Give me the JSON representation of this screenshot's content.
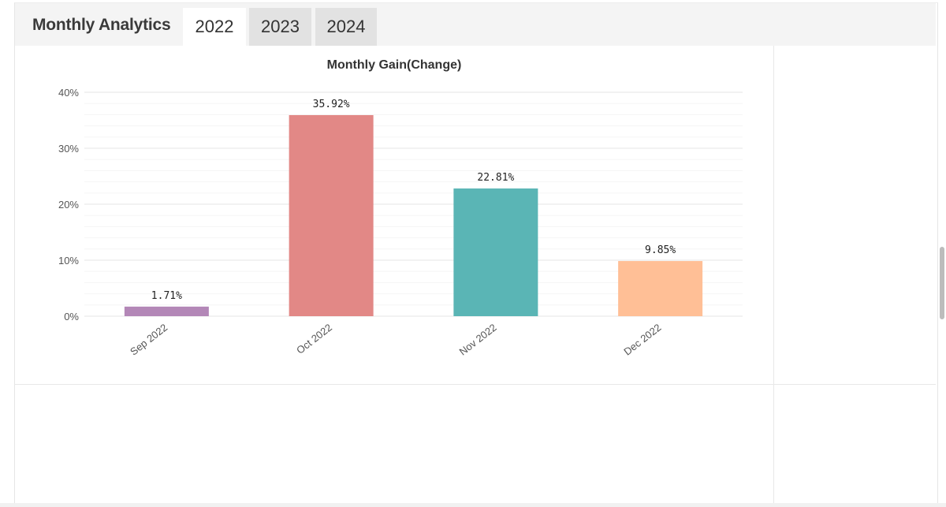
{
  "header": {
    "title": "Monthly Analytics",
    "tabs": [
      {
        "label": "2022",
        "active": true
      },
      {
        "label": "2023",
        "active": false
      },
      {
        "label": "2024",
        "active": false
      }
    ]
  },
  "chart_data": {
    "type": "bar",
    "title": "Monthly Gain(Change)",
    "xlabel": "",
    "ylabel": "",
    "ylim": [
      0,
      40
    ],
    "y_ticks": [
      "0%",
      "10%",
      "20%",
      "30%",
      "40%"
    ],
    "y_tick_values": [
      0,
      10,
      20,
      30,
      40
    ],
    "grid": true,
    "categories": [
      "Sep 2022",
      "Oct 2022",
      "Nov 2022",
      "Dec 2022"
    ],
    "values": [
      1.71,
      35.92,
      22.81,
      9.85
    ],
    "data_labels": [
      "1.71%",
      "35.92%",
      "22.81%",
      "9.85%"
    ],
    "colors": [
      "#b387b7",
      "#e28886",
      "#5ab5b5",
      "#ffbf96"
    ]
  }
}
